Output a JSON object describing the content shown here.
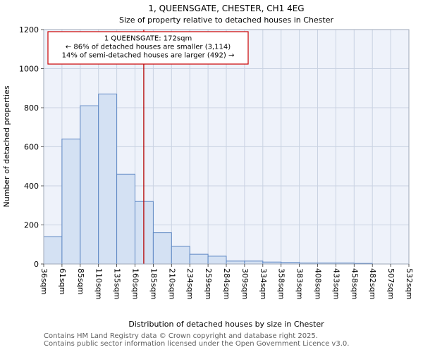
{
  "chart_data": {
    "type": "bar",
    "title": "1, QUEENSGATE, CHESTER, CH1 4EG",
    "subtitle": "Size of property relative to detached houses in Chester",
    "xlabel": "Distribution of detached houses by size in Chester",
    "ylabel": "Number of detached properties",
    "ylim": [
      0,
      1200
    ],
    "ytick_step": 200,
    "grid": true,
    "bin_labels": [
      "36sqm",
      "61sqm",
      "85sqm",
      "110sqm",
      "135sqm",
      "160sqm",
      "185sqm",
      "210sqm",
      "234sqm",
      "259sqm",
      "284sqm",
      "309sqm",
      "334sqm",
      "358sqm",
      "383sqm",
      "408sqm",
      "433sqm",
      "458sqm",
      "482sqm",
      "507sqm",
      "532sqm"
    ],
    "values": [
      140,
      640,
      810,
      870,
      460,
      320,
      160,
      90,
      50,
      40,
      15,
      15,
      10,
      8,
      5,
      5,
      5,
      3,
      0,
      0
    ],
    "marker_value": 172,
    "marker_label": "172sqm",
    "annotation": {
      "line1": "1 QUEENSGATE: 172sqm",
      "line2": "← 86% of detached houses are smaller (3,114)",
      "line3": "14% of semi-detached houses are larger (492) →"
    },
    "colors": {
      "bar_fill": "#d4e1f3",
      "bar_edge": "#5d87c3",
      "marker": "#b40000",
      "annotation_border": "#cc0000",
      "plot_bg": "#eef2fa",
      "grid": "#c9d2e2"
    }
  },
  "footer": {
    "line1": "Contains HM Land Registry data © Crown copyright and database right 2025.",
    "line2": "Contains public sector information licensed under the Open Government Licence v3.0."
  }
}
